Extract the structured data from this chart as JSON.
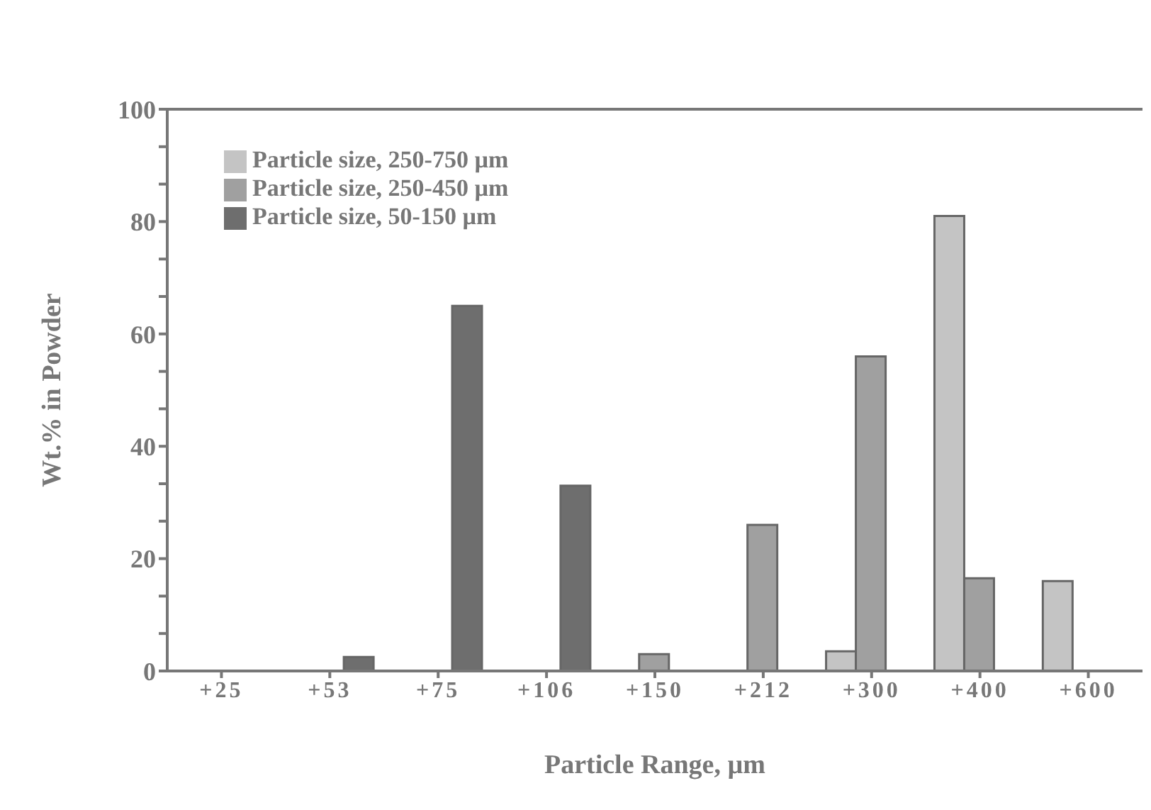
{
  "chart_data": {
    "type": "bar",
    "xlabel": "Particle  Range,  µm",
    "ylabel": "Wt.%  in  Powder",
    "categories": [
      "+25",
      "+53",
      "+75",
      "+106",
      "+150",
      "+212",
      "+300",
      "+400",
      "+600"
    ],
    "series": [
      {
        "name": "Particle size, 250-750 µm",
        "color": "#c4c4c4",
        "values": [
          null,
          null,
          null,
          null,
          null,
          null,
          3.5,
          81,
          16
        ]
      },
      {
        "name": "Particle size, 250-450 µm",
        "color": "#a0a0a0",
        "values": [
          null,
          null,
          null,
          null,
          3,
          26,
          56,
          16.5,
          null
        ]
      },
      {
        "name": "Particle size, 50-150 µm",
        "color": "#6e6e6e",
        "values": [
          null,
          2.5,
          65,
          33,
          null,
          null,
          null,
          null,
          null
        ]
      }
    ],
    "ylim": [
      0,
      100
    ],
    "yticks": [
      0,
      {
        "value": 6.67,
        "label": null
      },
      {
        "value": 13.33,
        "label": null
      },
      20,
      {
        "value": 26.67,
        "label": null
      },
      {
        "value": 33.33,
        "label": null
      },
      40,
      {
        "value": 46.67,
        "label": null
      },
      {
        "value": 53.33,
        "label": null
      },
      60,
      {
        "value": 66.67,
        "label": null
      },
      {
        "value": 73.33,
        "label": null
      },
      80,
      {
        "value": 86.67,
        "label": null
      },
      {
        "value": 93.33,
        "label": null
      },
      100
    ],
    "grid": false,
    "legend": "top left"
  }
}
